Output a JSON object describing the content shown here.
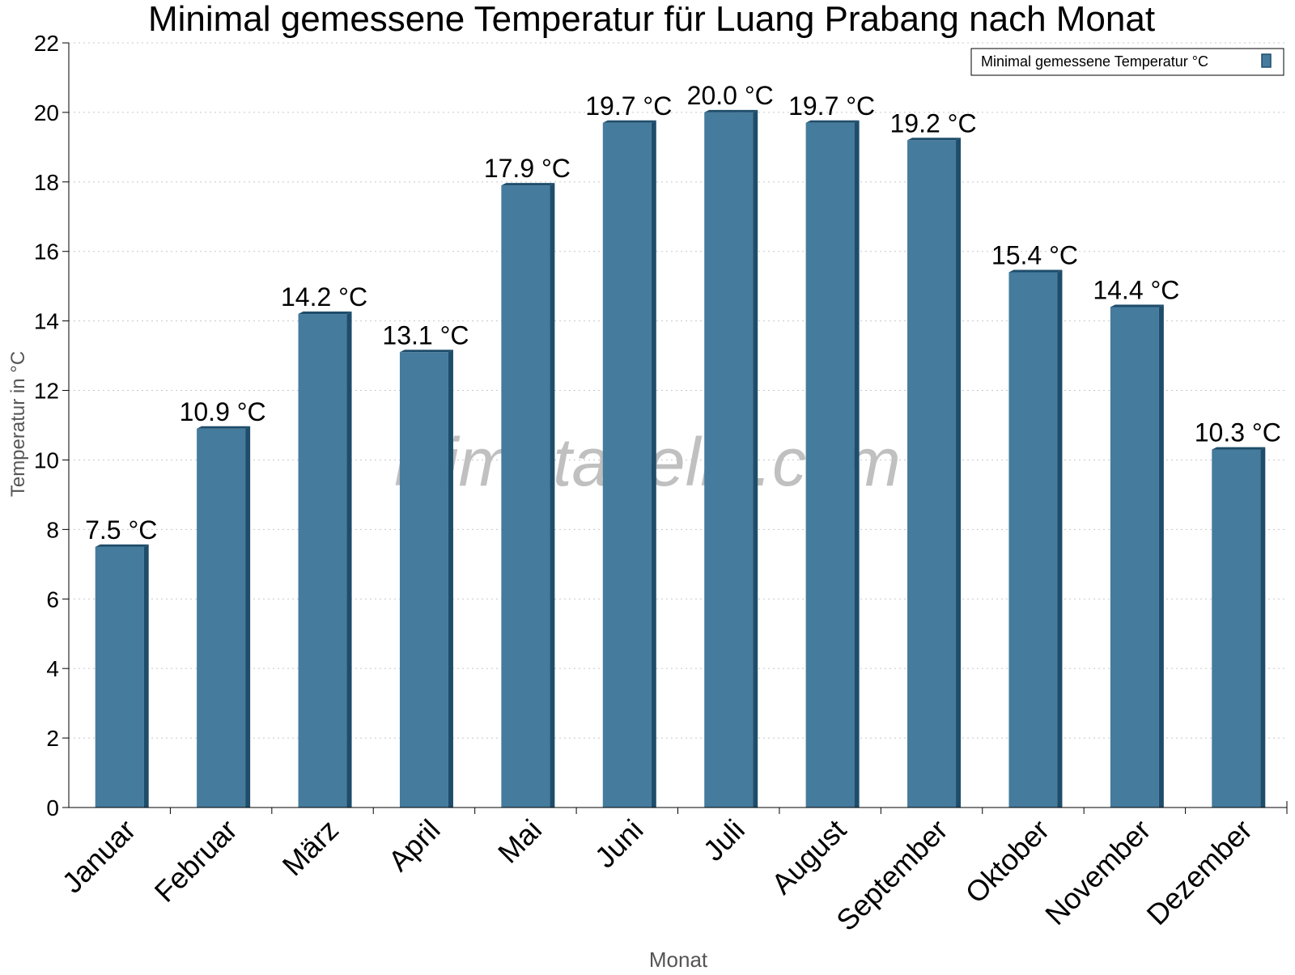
{
  "chart_data": {
    "type": "bar",
    "title": "Minimal gemessene Temperatur für Luang Prabang nach Monat",
    "xlabel": "Monat",
    "ylabel": "Temperatur in °C",
    "ylim": [
      0,
      22
    ],
    "yticks": [
      0,
      2,
      4,
      6,
      8,
      10,
      12,
      14,
      16,
      18,
      20,
      22
    ],
    "grid": true,
    "legend_position": "top-right",
    "value_suffix": " °C",
    "watermark": "klimatabelle.com",
    "categories": [
      "Januar",
      "Februar",
      "März",
      "April",
      "Mai",
      "Juni",
      "Juli",
      "August",
      "September",
      "Oktober",
      "November",
      "Dezember"
    ],
    "series": [
      {
        "name": "Minimal gemessene Temperatur °C",
        "color": "#457b9d",
        "values": [
          7.5,
          10.9,
          14.2,
          13.1,
          17.9,
          19.7,
          20.0,
          19.7,
          19.2,
          15.4,
          14.4,
          10.3
        ]
      }
    ]
  }
}
